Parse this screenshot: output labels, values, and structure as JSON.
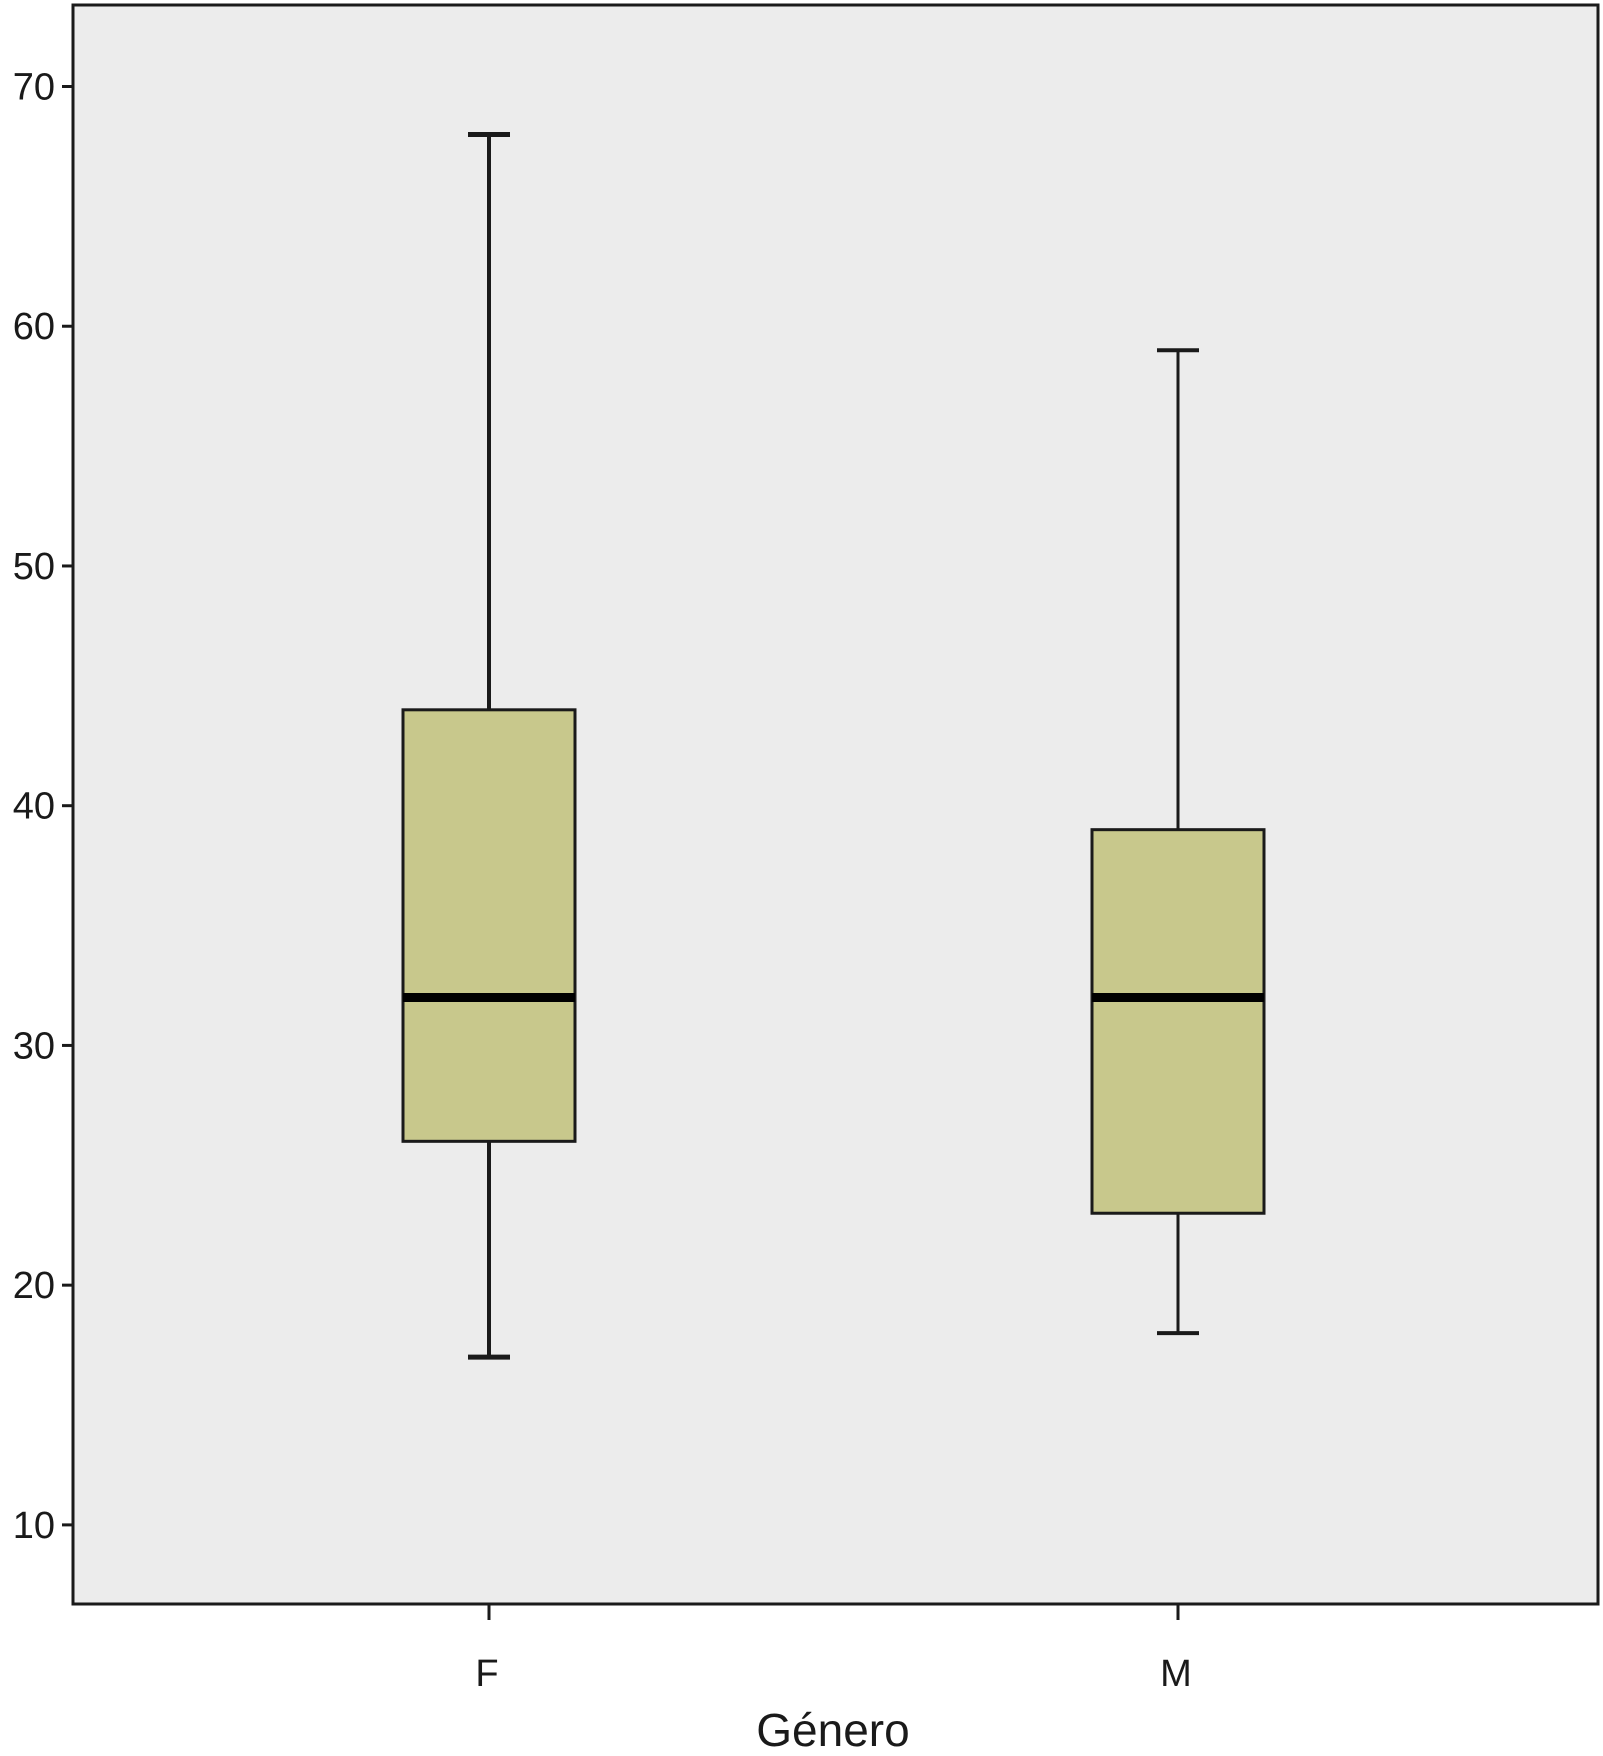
{
  "chart_data": {
    "type": "boxplot",
    "title": "",
    "xlabel": "Género",
    "ylabel": "",
    "categories": [
      "F",
      "M"
    ],
    "boxes": [
      {
        "category": "F",
        "whisker_low": 17,
        "q1": 26,
        "median": 32,
        "q3": 44,
        "whisker_high": 68
      },
      {
        "category": "M",
        "whisker_low": 18,
        "q1": 23,
        "median": 32,
        "q3": 39,
        "whisker_high": 59
      }
    ],
    "yticks": [
      10,
      20,
      30,
      40,
      50,
      60,
      70
    ],
    "ylim": [
      6.7,
      73.4
    ],
    "grid": false,
    "legend": "none",
    "colors": {
      "plot_background": "#ececec",
      "box_fill": "#c8c88c",
      "stroke": "#1a1a1a",
      "median": "#000000"
    }
  }
}
